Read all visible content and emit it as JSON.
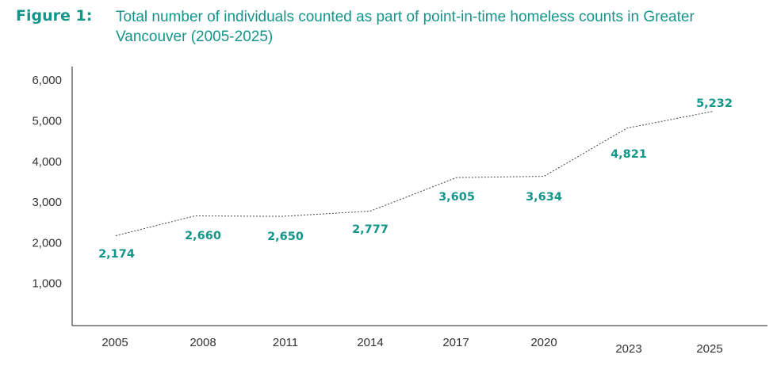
{
  "figure": {
    "label": "Figure 1:",
    "title": "Total number of individuals counted as part of point-in-time homeless counts in Greater Vancouver (2005-2025)"
  },
  "colors": {
    "accent": "#14958a",
    "line": "#444444",
    "axis": "#222222"
  },
  "chart_data": {
    "type": "line",
    "title": "Total number of individuals counted as part of point-in-time homeless counts in Greater Vancouver (2005-2025)",
    "xlabel": "",
    "ylabel": "",
    "categories": [
      "2005",
      "2008",
      "2011",
      "2014",
      "2017",
      "2020",
      "2023",
      "2025"
    ],
    "series": [
      {
        "values": [
          2174,
          2660,
          2650,
          2777,
          3605,
          3634,
          4821,
          5232
        ],
        "labels": [
          "2,174",
          "2,660",
          "2,650",
          "2,777",
          "3,605",
          "3,634",
          "4,821",
          "5,232"
        ],
        "line_style": "dotted"
      }
    ],
    "ylim": [
      0,
      6000
    ],
    "yticks": [
      1000,
      2000,
      3000,
      4000,
      5000,
      6000
    ],
    "ytick_labels": [
      "1,000",
      "2,000",
      "3,000",
      "4,000",
      "5,000",
      "6,000"
    ],
    "grid": false,
    "legend": "none"
  }
}
